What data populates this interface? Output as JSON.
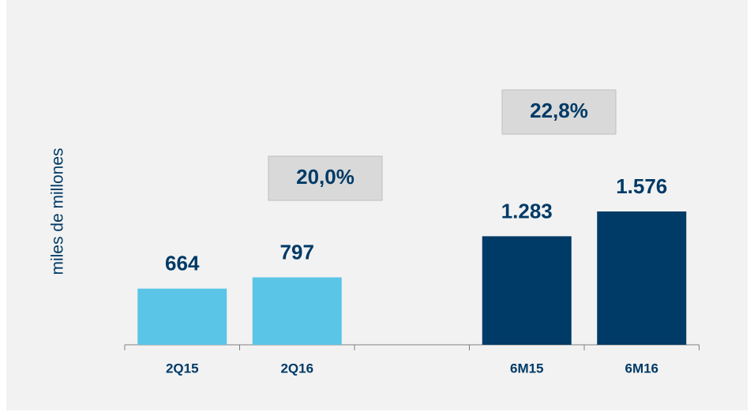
{
  "chart_data": {
    "type": "bar",
    "y_label": "miles de millones",
    "categories": [
      "2Q15",
      "2Q16",
      null,
      "6M15",
      "6M16"
    ],
    "values": [
      664,
      797,
      null,
      1283,
      1576
    ],
    "value_labels": [
      "664",
      "797",
      null,
      "1.283",
      "1.576"
    ],
    "colors": [
      "#5bc5e8",
      "#5bc5e8",
      null,
      "#003a66",
      "#003a66"
    ],
    "ylim": [
      0,
      1800
    ],
    "annotations": [
      {
        "text": "20,0%"
      },
      {
        "text": "22,8%"
      }
    ]
  }
}
